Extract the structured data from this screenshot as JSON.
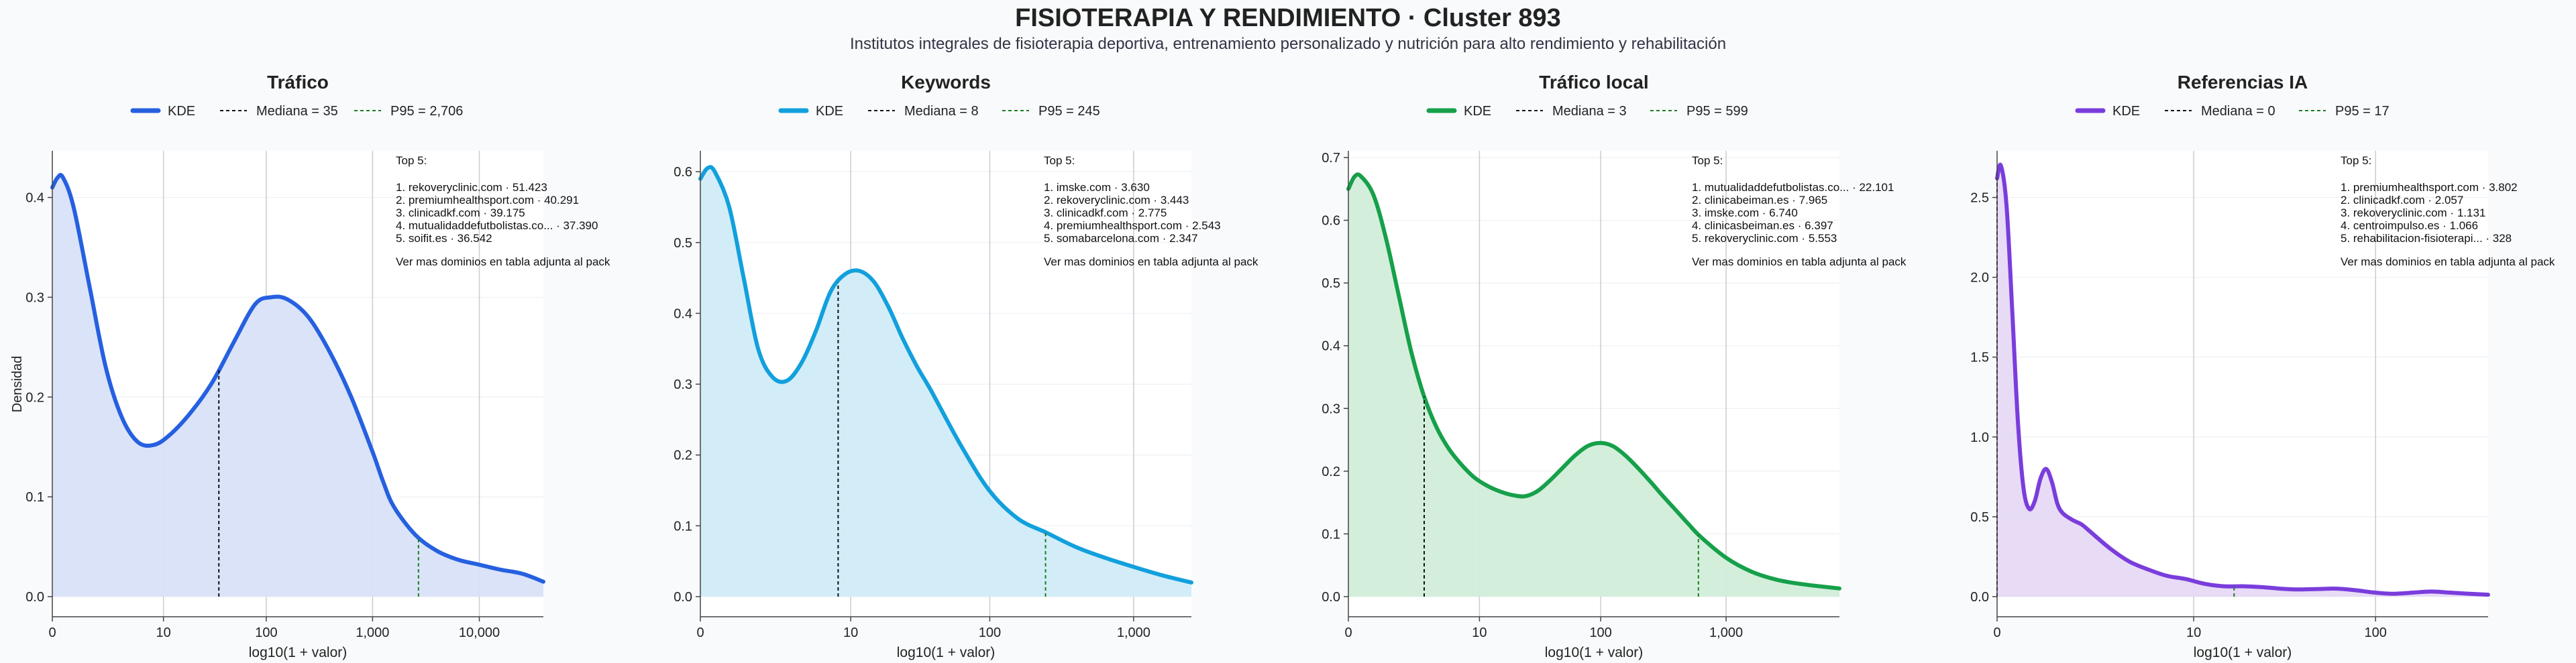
{
  "title": "FISIOTERAPIA Y RENDIMIENTO · Cluster 893",
  "subtitle": "Institutos integrales de fisioterapia deportiva, entrenamiento personalizado y nutrición para alto rendimiento y rehabilitación",
  "ylabel_shared": "Densidad",
  "chart_data": [
    {
      "type": "area",
      "title": "Tráfico",
      "xlabel": "log10(1 + valor)",
      "ylabel": "Densidad",
      "color": "#2660e0",
      "fill": "#d8e1f8",
      "xlim": [
        0,
        4.6
      ],
      "ylim": [
        0,
        0.44
      ],
      "xticks": [
        {
          "v": 0,
          "label": "0"
        },
        {
          "v": 1.041,
          "label": "10"
        },
        {
          "v": 2.004,
          "label": "100"
        },
        {
          "v": 3.0,
          "label": "1,000"
        },
        {
          "v": 4.0,
          "label": "10,000"
        }
      ],
      "yticks": [
        {
          "v": 0,
          "label": "0.0"
        },
        {
          "v": 0.1,
          "label": "0.1"
        },
        {
          "v": 0.2,
          "label": "0.2"
        },
        {
          "v": 0.3,
          "label": "0.3"
        },
        {
          "v": 0.4,
          "label": "0.4"
        }
      ],
      "legend": [
        "KDE",
        "Mediana = 35",
        "P95 = 2,706"
      ],
      "median": 1.56,
      "p95": 3.43,
      "x": [
        0,
        0.05,
        0.1,
        0.2,
        0.35,
        0.5,
        0.65,
        0.8,
        0.95,
        1.1,
        1.3,
        1.5,
        1.7,
        1.9,
        2.05,
        2.2,
        2.4,
        2.6,
        2.8,
        3.0,
        3.1,
        3.2,
        3.4,
        3.6,
        3.8,
        4.0,
        4.2,
        4.4,
        4.6
      ],
      "y": [
        0.41,
        0.42,
        0.42,
        0.39,
        0.31,
        0.23,
        0.18,
        0.155,
        0.152,
        0.162,
        0.185,
        0.215,
        0.255,
        0.293,
        0.3,
        0.298,
        0.28,
        0.245,
        0.2,
        0.145,
        0.115,
        0.09,
        0.062,
        0.046,
        0.037,
        0.032,
        0.027,
        0.023,
        0.015
      ],
      "top5_title": "Top 5:",
      "top5": [
        "1. rekoveryclinic.com · 51.423",
        "2. premiumhealthsport.com · 40.291",
        "3. clinicadkf.com · 39.175",
        "4. mutualidaddefutbolistas.co... · 37.390",
        "5. soifit.es · 36.542"
      ],
      "note": "Ver mas dominios en tabla adjunta al pack"
    },
    {
      "type": "area",
      "title": "Keywords",
      "xlabel": "log10(1 + valor)",
      "ylabel": "",
      "color": "#12a0dd",
      "fill": "#d0ecf8",
      "xlim": [
        0,
        3.4
      ],
      "ylim": [
        0,
        0.62
      ],
      "xticks": [
        {
          "v": 0,
          "label": "0"
        },
        {
          "v": 1.041,
          "label": "10"
        },
        {
          "v": 2.004,
          "label": "100"
        },
        {
          "v": 3.0,
          "label": "1,000"
        }
      ],
      "yticks": [
        {
          "v": 0,
          "label": "0.0"
        },
        {
          "v": 0.1,
          "label": "0.1"
        },
        {
          "v": 0.2,
          "label": "0.2"
        },
        {
          "v": 0.3,
          "label": "0.3"
        },
        {
          "v": 0.4,
          "label": "0.4"
        },
        {
          "v": 0.5,
          "label": "0.5"
        },
        {
          "v": 0.6,
          "label": "0.6"
        }
      ],
      "legend": [
        "KDE",
        "Mediana = 8",
        "P95 = 245"
      ],
      "median": 0.954,
      "p95": 2.39,
      "x": [
        0,
        0.05,
        0.1,
        0.2,
        0.3,
        0.4,
        0.5,
        0.6,
        0.7,
        0.8,
        0.9,
        1.0,
        1.1,
        1.2,
        1.3,
        1.4,
        1.5,
        1.6,
        1.8,
        2.0,
        2.2,
        2.4,
        2.6,
        2.8,
        3.0,
        3.2,
        3.4
      ],
      "y": [
        0.59,
        0.605,
        0.6,
        0.55,
        0.45,
        0.35,
        0.31,
        0.305,
        0.33,
        0.375,
        0.43,
        0.455,
        0.46,
        0.445,
        0.41,
        0.365,
        0.325,
        0.29,
        0.215,
        0.15,
        0.11,
        0.09,
        0.07,
        0.055,
        0.042,
        0.03,
        0.02
      ],
      "top5_title": "Top 5:",
      "top5": [
        "1. imske.com · 3.630",
        "2. rekoveryclinic.com · 3.443",
        "3. clinicadkf.com · 2.775",
        "4. premiumhealthsport.com · 2.543",
        "5. somabarcelona.com · 2.347"
      ],
      "note": "Ver mas dominios en tabla adjunta al pack"
    },
    {
      "type": "area",
      "title": "Tráfico local",
      "xlabel": "log10(1 + valor)",
      "ylabel": "",
      "color": "#16a04a",
      "fill": "#d2edda",
      "xlim": [
        0,
        3.9
      ],
      "ylim": [
        0,
        0.7
      ],
      "xticks": [
        {
          "v": 0,
          "label": "0"
        },
        {
          "v": 1.041,
          "label": "10"
        },
        {
          "v": 2.004,
          "label": "100"
        },
        {
          "v": 3.0,
          "label": "1,000"
        }
      ],
      "yticks": [
        {
          "v": 0,
          "label": "0.0"
        },
        {
          "v": 0.1,
          "label": "0.1"
        },
        {
          "v": 0.2,
          "label": "0.2"
        },
        {
          "v": 0.3,
          "label": "0.3"
        },
        {
          "v": 0.4,
          "label": "0.4"
        },
        {
          "v": 0.5,
          "label": "0.5"
        },
        {
          "v": 0.6,
          "label": "0.6"
        },
        {
          "v": 0.7,
          "label": "0.7"
        }
      ],
      "legend": [
        "KDE",
        "Mediana = 3",
        "P95 = 599"
      ],
      "median": 0.602,
      "p95": 2.78,
      "x": [
        0,
        0.05,
        0.1,
        0.2,
        0.3,
        0.4,
        0.5,
        0.6,
        0.7,
        0.8,
        0.9,
        1.0,
        1.1,
        1.2,
        1.3,
        1.4,
        1.5,
        1.6,
        1.7,
        1.8,
        1.9,
        2.0,
        2.1,
        2.2,
        2.3,
        2.4,
        2.5,
        2.6,
        2.7,
        2.8,
        3.0,
        3.2,
        3.4,
        3.6,
        3.9
      ],
      "y": [
        0.65,
        0.67,
        0.67,
        0.64,
        0.57,
        0.48,
        0.39,
        0.32,
        0.27,
        0.235,
        0.21,
        0.19,
        0.177,
        0.168,
        0.162,
        0.16,
        0.168,
        0.185,
        0.205,
        0.225,
        0.24,
        0.245,
        0.24,
        0.225,
        0.205,
        0.183,
        0.16,
        0.138,
        0.116,
        0.095,
        0.062,
        0.04,
        0.027,
        0.02,
        0.013
      ],
      "top5_title": "Top 5:",
      "top5": [
        "1. mutualidaddefutbolistas.co... · 22.101",
        "2. clinicabeiman.es · 7.965",
        "3. imske.com · 6.740",
        "4. clinicasbeiman.es · 6.397",
        "5. rekoveryclinic.com · 5.553"
      ],
      "note": "Ver mas dominios en tabla adjunta al pack"
    },
    {
      "type": "area",
      "title": "Referencias IA",
      "xlabel": "log10(1 + valor)",
      "ylabel": "",
      "color": "#7a3ddc",
      "fill": "#e6d9f6",
      "xlim": [
        0,
        2.6
      ],
      "ylim": [
        0,
        2.75
      ],
      "xticks": [
        {
          "v": 0,
          "label": "0"
        },
        {
          "v": 1.041,
          "label": "10"
        },
        {
          "v": 2.004,
          "label": "100"
        }
      ],
      "yticks": [
        {
          "v": 0,
          "label": "0.0"
        },
        {
          "v": 0.5,
          "label": "0.5"
        },
        {
          "v": 1.0,
          "label": "1.0"
        },
        {
          "v": 1.5,
          "label": "1.5"
        },
        {
          "v": 2.0,
          "label": "2.0"
        },
        {
          "v": 2.5,
          "label": "2.5"
        }
      ],
      "legend": [
        "KDE",
        "Mediana = 0",
        "P95 = 17"
      ],
      "median": 0,
      "p95": 1.255,
      "x": [
        0,
        0.02,
        0.05,
        0.08,
        0.11,
        0.14,
        0.17,
        0.2,
        0.23,
        0.26,
        0.29,
        0.32,
        0.35,
        0.4,
        0.45,
        0.5,
        0.6,
        0.7,
        0.8,
        0.9,
        1.0,
        1.1,
        1.2,
        1.3,
        1.4,
        1.5,
        1.6,
        1.7,
        1.8,
        1.9,
        2.0,
        2.1,
        2.2,
        2.3,
        2.4,
        2.5,
        2.6
      ],
      "y": [
        2.62,
        2.7,
        2.45,
        1.8,
        1.1,
        0.68,
        0.55,
        0.6,
        0.74,
        0.8,
        0.72,
        0.58,
        0.52,
        0.48,
        0.45,
        0.4,
        0.3,
        0.22,
        0.17,
        0.13,
        0.11,
        0.08,
        0.065,
        0.065,
        0.06,
        0.05,
        0.045,
        0.048,
        0.05,
        0.04,
        0.025,
        0.018,
        0.025,
        0.032,
        0.025,
        0.018,
        0.012
      ],
      "top5_title": "Top 5:",
      "top5": [
        "1. premiumhealthsport.com · 3.802",
        "2. clinicadkf.com · 2.057",
        "3. rekoveryclinic.com · 1.131",
        "4. centroimpulso.es · 1.066",
        "5. rehabilitacion-fisioterapi... · 328"
      ],
      "note": "Ver mas dominios en tabla adjunta al pack"
    }
  ]
}
